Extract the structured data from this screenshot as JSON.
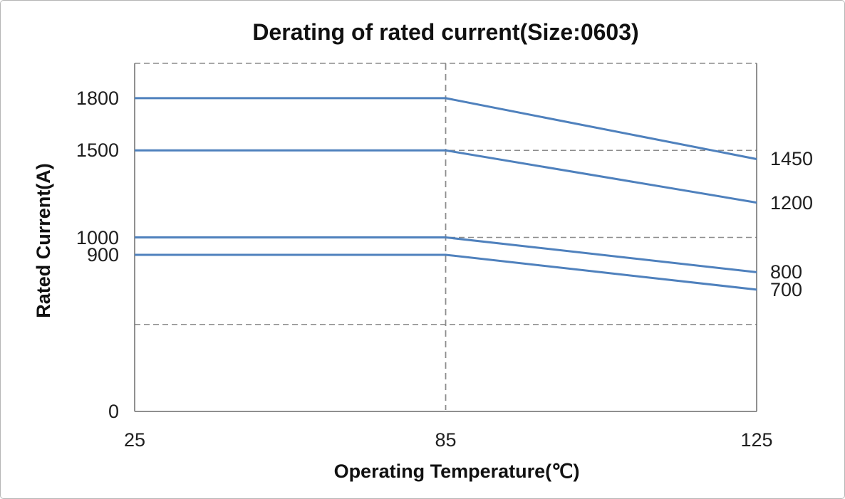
{
  "chart_data": {
    "type": "line",
    "title": "Derating of rated current(Size:0603)",
    "xlabel": "Operating Temperature(℃)",
    "ylabel": "Rated Current(A)",
    "x_categories": [
      "25",
      "85",
      "125"
    ],
    "ylim": [
      0,
      2000
    ],
    "gridline_values": [
      500,
      1000,
      1500,
      2000
    ],
    "grid_style": "dashed",
    "legend": "none",
    "vertical_guide_at_category": "85",
    "series": [
      {
        "values": [
          1800,
          1800,
          1450
        ]
      },
      {
        "values": [
          1500,
          1500,
          1200
        ]
      },
      {
        "values": [
          1000,
          1000,
          800
        ]
      },
      {
        "values": [
          900,
          900,
          700
        ]
      }
    ],
    "left_axis_tick_labels": [
      {
        "text": "1800",
        "value": 1800
      },
      {
        "text": "1500",
        "value": 1500
      },
      {
        "text": "1000",
        "value": 1000
      },
      {
        "text": "900",
        "value": 900
      },
      {
        "text": "0",
        "value": 0
      }
    ],
    "right_end_labels": [
      {
        "text": "1450",
        "value": 1450
      },
      {
        "text": "1200",
        "value": 1200
      },
      {
        "text": "800",
        "value": 800
      },
      {
        "text": "700",
        "value": 700
      }
    ],
    "colors": {
      "line": "#4f81bd",
      "grid": "#8c8c8c",
      "axis": "#6b6b6b",
      "text": "#1f1f1f",
      "background": "#ffffff",
      "border": "#b5b5b5"
    }
  }
}
